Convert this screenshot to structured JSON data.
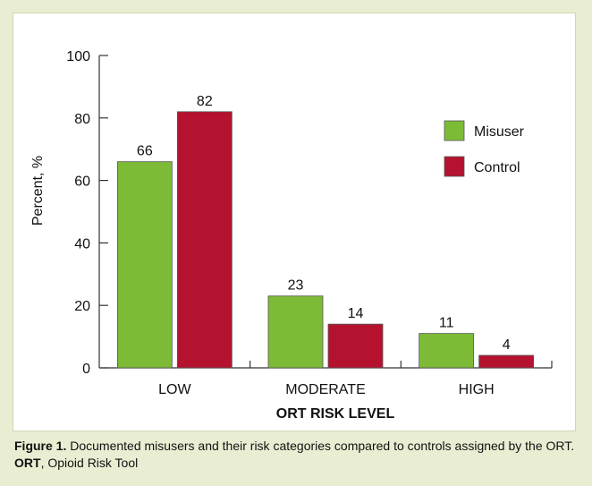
{
  "chart_data": {
    "type": "bar",
    "categories": [
      "LOW",
      "MODERATE",
      "HIGH"
    ],
    "series": [
      {
        "name": "Misuser",
        "values": [
          66,
          23,
          11
        ],
        "color": "#7dbb37"
      },
      {
        "name": "Control",
        "values": [
          82,
          14,
          4
        ],
        "color": "#b5122f"
      }
    ],
    "data_labels": [
      [
        "66",
        "23",
        "11"
      ],
      [
        "82",
        "14",
        "4"
      ]
    ],
    "y_ticks": [
      "0",
      "20",
      "40",
      "60",
      "80",
      "100"
    ],
    "ylim": [
      0,
      100
    ],
    "xlabel": "ORT RISK LEVEL",
    "ylabel": "Percent, %",
    "legend_position": "top-right",
    "grid": false
  },
  "caption": {
    "fig_label": "Figure 1.",
    "fig_text": " Documented misusers and their risk categories compared to controls assigned by the ORT.",
    "abbr_label": "ORT",
    "abbr_text": ", Opioid Risk Tool"
  },
  "colors": {
    "background": "#e9eed3",
    "panel": "#ffffff",
    "misuser": "#7dbb37",
    "control": "#b5122f"
  }
}
